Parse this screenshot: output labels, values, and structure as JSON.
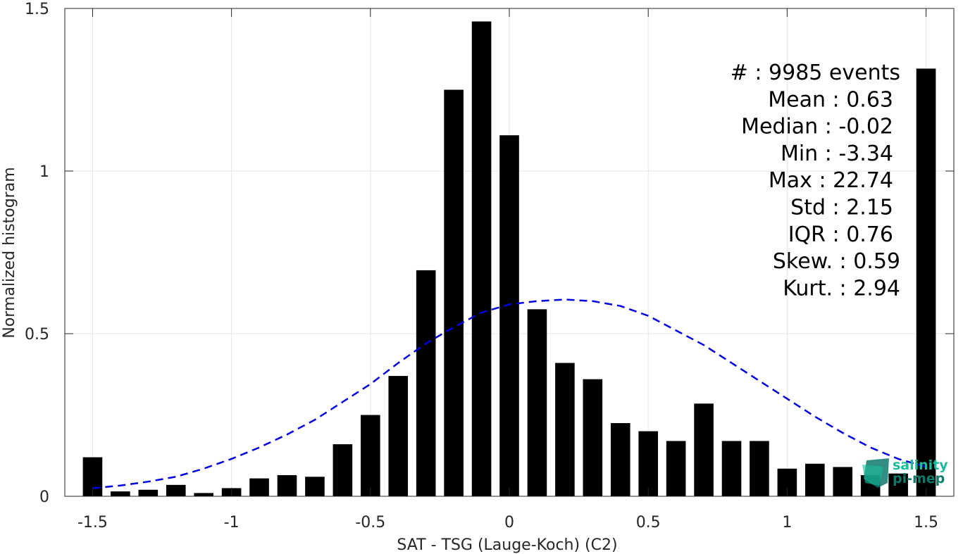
{
  "chart_data": {
    "type": "bar",
    "xlabel": "SAT - TSG (Lauge-Koch) (C2)",
    "ylabel": "Normalized histogram",
    "xlim": [
      -1.6,
      1.6
    ],
    "ylim": [
      0,
      1.5
    ],
    "grid": true,
    "x_ticks": [
      -1.5,
      -1,
      -0.5,
      0,
      0.5,
      1,
      1.5
    ],
    "x_tick_labels": [
      "-1.5",
      "-1",
      "-0.5",
      "0",
      "0.5",
      "1",
      "1.5"
    ],
    "y_ticks": [
      0,
      0.5,
      1,
      1.5
    ],
    "y_tick_labels": [
      "0",
      "0.5",
      "1",
      "1.5"
    ],
    "bar_width": 0.07,
    "bar_color": "#000000",
    "series": [
      {
        "x": [
          -1.5,
          -1.4,
          -1.3,
          -1.2,
          -1.1,
          -1.0,
          -0.9,
          -0.8,
          -0.7,
          -0.6,
          -0.5,
          -0.4,
          -0.3,
          -0.2,
          -0.1,
          0.0,
          0.1,
          0.2,
          0.3,
          0.4,
          0.5,
          0.6,
          0.7,
          0.8,
          0.9,
          1.0,
          1.1,
          1.2,
          1.3,
          1.4,
          1.5
        ],
        "values": [
          0.12,
          0.015,
          0.02,
          0.035,
          0.01,
          0.025,
          0.055,
          0.065,
          0.06,
          0.16,
          0.25,
          0.37,
          0.695,
          1.25,
          1.46,
          1.11,
          0.575,
          0.41,
          0.36,
          0.225,
          0.2,
          0.17,
          0.285,
          0.17,
          0.17,
          0.085,
          0.1,
          0.09,
          0.065,
          0.07,
          1.315
        ]
      }
    ],
    "fit_curve": {
      "style": "dashed",
      "color": "#0000e0",
      "mean": 0.2,
      "peak": 0.605,
      "x_range": [
        -1.5,
        1.5
      ],
      "x": [
        -1.5,
        -1.4,
        -1.3,
        -1.2,
        -1.1,
        -1.0,
        -0.9,
        -0.8,
        -0.7,
        -0.6,
        -0.5,
        -0.4,
        -0.3,
        -0.2,
        -0.1,
        0.0,
        0.1,
        0.2,
        0.3,
        0.4,
        0.5,
        0.6,
        0.7,
        0.8,
        0.9,
        1.0,
        1.1,
        1.2,
        1.3,
        1.4,
        1.5
      ],
      "y": [
        0.025,
        0.033,
        0.045,
        0.06,
        0.085,
        0.115,
        0.15,
        0.19,
        0.235,
        0.29,
        0.345,
        0.41,
        0.47,
        0.52,
        0.565,
        0.59,
        0.6,
        0.605,
        0.6,
        0.585,
        0.555,
        0.51,
        0.465,
        0.41,
        0.355,
        0.3,
        0.245,
        0.195,
        0.15,
        0.115,
        0.09
      ]
    },
    "annotations": [
      "#  : 9985 events",
      "Mean : 0.63",
      "Median : -0.02",
      "Min : -3.34",
      "Max : 22.74",
      "Std : 2.15",
      "IQR : 0.76",
      "Skew. : 0.59",
      "Kurt. : 2.94"
    ]
  },
  "logo": {
    "line1": "salinity",
    "line2": "pi-mep",
    "colors": [
      "#1abc9c",
      "#0e7a6a",
      "#13a388"
    ]
  }
}
